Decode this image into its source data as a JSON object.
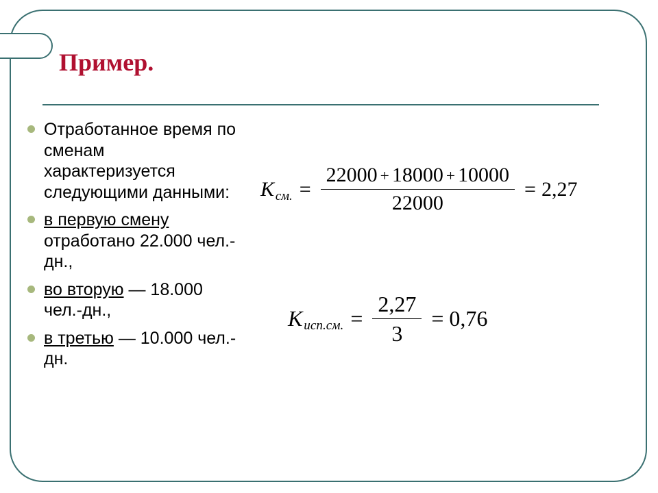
{
  "colors": {
    "frame_border": "#3a7071",
    "title_color": "#b01030",
    "bullet_color": "#a7b87d",
    "text_color": "#000000",
    "background": "#ffffff"
  },
  "typography": {
    "title_font": "Times New Roman",
    "title_size_pt": 36,
    "title_weight": "bold",
    "body_font": "Arial",
    "body_size_pt": 25,
    "math_font": "Times New Roman"
  },
  "title": "Пример.",
  "bullets": [
    {
      "underline": null,
      "rest": "Отработанное время по сменам характеризуется следующими данными:"
    },
    {
      "underline": "в первую смену",
      "rest": " отработано 22.000 чел.-дн.,"
    },
    {
      "underline": "во вторую",
      "rest": " — 18.000 чел.-дн.,"
    },
    {
      "underline": "в третью",
      "rest": " — 10.000 чел.-дн."
    }
  ],
  "eq1": {
    "var": "К",
    "subscript": "см.",
    "num_a": "22000",
    "num_b": "18000",
    "num_c": "10000",
    "den": "22000",
    "result": "2,27"
  },
  "eq2": {
    "var": "К",
    "subscript": "исп.см.",
    "num": "2,27",
    "den": "3",
    "result": "0,76"
  }
}
